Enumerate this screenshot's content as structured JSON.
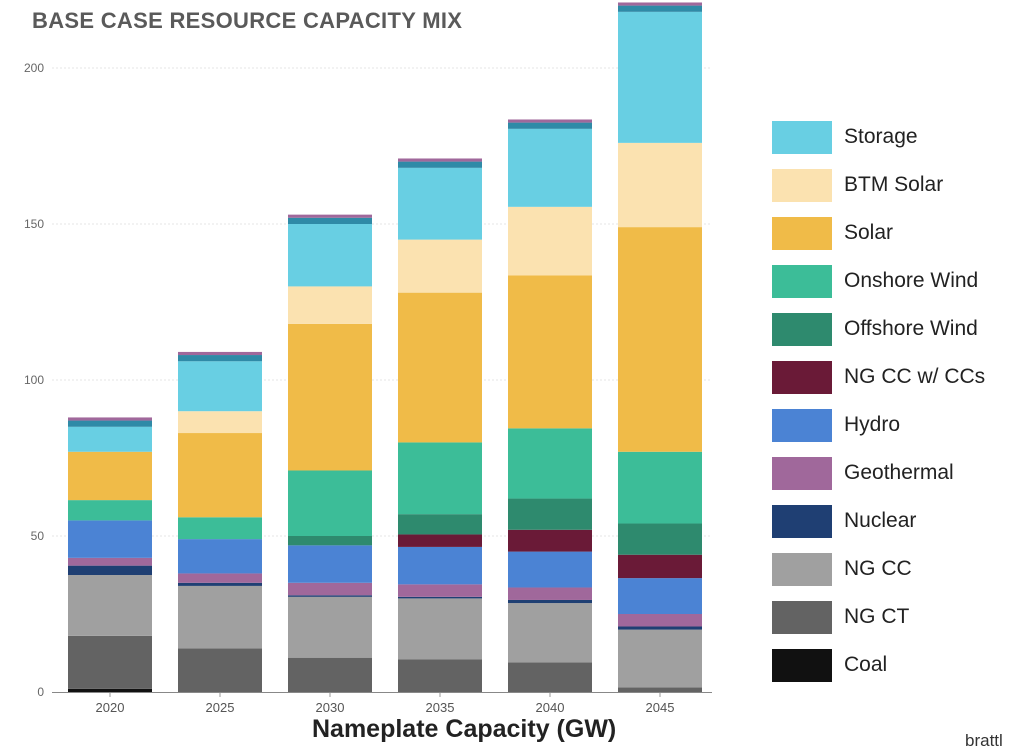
{
  "chart_data": {
    "type": "bar",
    "stacked": true,
    "title": "BASE CASE RESOURCE CAPACITY MIX",
    "xlabel": "Nameplate Capacity (GW)",
    "ylabel": "",
    "ylim": [
      0,
      215
    ],
    "yticks": [
      0,
      50,
      100,
      150,
      200
    ],
    "grid": "horizontal",
    "legend_position": "right",
    "categories": [
      "2020",
      "2025",
      "2030",
      "2035",
      "2040",
      "2045"
    ],
    "series": [
      {
        "name": "Coal",
        "color": "#111111",
        "values": [
          1,
          0,
          0,
          0,
          0,
          0
        ]
      },
      {
        "name": "NG CT",
        "color": "#636363",
        "values": [
          17,
          14,
          11,
          10.5,
          9.5,
          1.5
        ]
      },
      {
        "name": "NG CC",
        "color": "#a0a0a0",
        "values": [
          19.5,
          20,
          19.5,
          19.5,
          19,
          18.5
        ]
      },
      {
        "name": "Nuclear",
        "color": "#1f3f73",
        "values": [
          3,
          1,
          0.5,
          0.5,
          1,
          1
        ]
      },
      {
        "name": "Geothermal",
        "color": "#a0689b",
        "values": [
          2.5,
          3,
          4,
          4,
          4,
          4
        ]
      },
      {
        "name": "Hydro",
        "color": "#4b83d4",
        "values": [
          12,
          11,
          12,
          12,
          11.5,
          11.5
        ]
      },
      {
        "name": "NG CC w/ CCs",
        "color": "#6a1a37",
        "values": [
          0,
          0,
          0,
          4,
          7,
          7.5
        ]
      },
      {
        "name": "Offshore Wind",
        "color": "#2e8a6e",
        "values": [
          0,
          0,
          3,
          6.5,
          10,
          10
        ]
      },
      {
        "name": "Onshore Wind",
        "color": "#3cbd98",
        "values": [
          6.5,
          7,
          21,
          23,
          22.5,
          23
        ]
      },
      {
        "name": "Solar",
        "color": "#f0bb48",
        "values": [
          15.5,
          27,
          47,
          48,
          49,
          72
        ]
      },
      {
        "name": "BTM Solar",
        "color": "#fbe2b0",
        "values": [
          0,
          7,
          12,
          17,
          22,
          27
        ]
      },
      {
        "name": "Storage",
        "color": "#68cfe3",
        "values": [
          8,
          16,
          20,
          23,
          25,
          42
        ]
      }
    ],
    "top_caps": [
      {
        "color": "#2f8aa7",
        "value": 2
      },
      {
        "color": "#a0689b",
        "value": 1
      }
    ]
  },
  "legend": [
    {
      "name": "Storage",
      "color": "#68cfe3"
    },
    {
      "name": "BTM Solar",
      "color": "#fbe2b0"
    },
    {
      "name": "Solar",
      "color": "#f0bb48"
    },
    {
      "name": "Onshore Wind",
      "color": "#3cbd98"
    },
    {
      "name": "Offshore Wind",
      "color": "#2e8a6e"
    },
    {
      "name": "NG CC w/ CCs",
      "color": "#6a1a37"
    },
    {
      "name": "Hydro",
      "color": "#4b83d4"
    },
    {
      "name": "Geothermal",
      "color": "#a0689b"
    },
    {
      "name": "Nuclear",
      "color": "#1f3f73"
    },
    {
      "name": "NG CC",
      "color": "#a0a0a0"
    },
    {
      "name": "NG CT",
      "color": "#636363"
    },
    {
      "name": "Coal",
      "color": "#111111"
    }
  ],
  "watermark": "brattl"
}
